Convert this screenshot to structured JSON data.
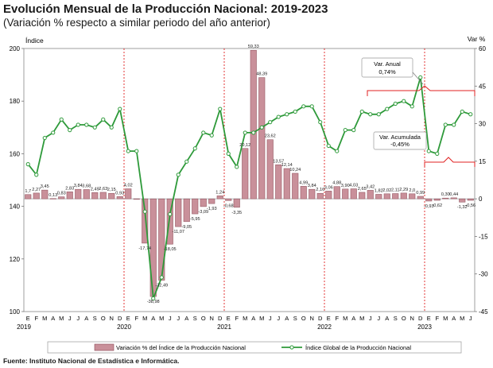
{
  "title": "Evolución Mensual de la Producción Nacional: 2019-2023",
  "subtitle": "(Variación % respecto a similar periodo del año anterior)",
  "source": "Fuente: Instituto Nacional de Estadística e Informática.",
  "chart_data": {
    "type": "bar",
    "ylabel": "Índice",
    "y2label": "Var %",
    "ylim": [
      100,
      200
    ],
    "y2lim": [
      -45,
      60
    ],
    "yticks": [
      "100",
      "120",
      "140",
      "160",
      "180",
      "200"
    ],
    "y2ticks": [
      "-45",
      "-30",
      "-15",
      "0",
      "15",
      "30",
      "45",
      "60"
    ],
    "month_labels": [
      "E",
      "F",
      "M",
      "A",
      "M",
      "J",
      "J",
      "A",
      "S",
      "O",
      "N",
      "D"
    ],
    "years": [
      "2019",
      "2020",
      "2021",
      "2022",
      "2023"
    ],
    "grid": false,
    "legend_position": "bottom",
    "colors": {
      "bar": "#c9909a",
      "bar_stroke": "#8a4a55",
      "line": "#2e9a3a",
      "marker_fill": "#ffffff",
      "divider": "#e02020",
      "annotation": "#e02020"
    },
    "series": [
      {
        "name": "Variación % del Índice de la Producción Nacional",
        "kind": "bar",
        "axis": "right",
        "values": [
          1.7,
          2.3,
          3.5,
          0.1,
          0.8,
          2.8,
          3.8,
          3.7,
          2.5,
          2.6,
          2.2,
          0.9,
          4.0,
          0.0,
          -17.7,
          -39.0,
          -32.5,
          -18.1,
          -11.1,
          -9.1,
          -6.0,
          -3.1,
          -1.9,
          1.2,
          -0.7,
          -3.4,
          20.1,
          59.3,
          48.4,
          23.6,
          13.6,
          12.1,
          10.2,
          5.0,
          3.8,
          2.2,
          3.1,
          4.9,
          3.9,
          4.0,
          2.6,
          3.4,
          1.8,
          2.0,
          2.1,
          2.3,
          2.0,
          1.0,
          -0.9,
          -0.6,
          0.3,
          0.4,
          -1.3,
          -0.6
        ],
        "data_labels": [
          "1,7",
          "2,27",
          "3,45",
          "0,13",
          "0,83",
          "2,83",
          "3,84",
          "3,68",
          "2,49",
          "2,63",
          "2,15",
          "0,93",
          "4,02",
          "",
          "-17,74",
          "-38,98",
          "-32,49",
          "-18,05",
          "-11,07",
          "-9,05",
          "-5,95",
          "-3,09",
          "-1,93",
          "1,24",
          "-0,68",
          "-3,35",
          "20,12",
          "59,33",
          "48,39",
          "23,62",
          "13,57",
          "12,14",
          "10,24",
          "4,99",
          "3,84",
          "2,16",
          "3,06",
          "4,88",
          "3,90",
          "4,03",
          "2,65",
          "3,42",
          "1,82",
          "2,02",
          "2,11",
          "2,29",
          "2,0",
          "0,99",
          "-0,93",
          "-0,62",
          "0,30",
          "0,44",
          "-1,32",
          "-0,56"
        ]
      },
      {
        "name": "Índice Global de la Producción Nacional",
        "kind": "line",
        "axis": "left",
        "values": [
          156,
          152,
          166,
          168,
          173,
          169,
          171,
          171,
          170,
          173,
          170,
          177,
          161,
          161,
          138,
          105,
          113,
          137,
          152,
          157,
          162,
          168,
          167,
          177,
          160,
          155,
          168,
          168,
          170,
          172,
          174,
          175,
          176,
          178,
          178,
          172,
          163,
          161,
          169,
          169,
          176,
          175,
          175,
          177,
          179,
          180,
          178,
          189,
          161,
          160,
          171,
          171,
          176,
          175
        ]
      }
    ],
    "annotations": [
      {
        "text": [
          "Var. Anual",
          "0,74%"
        ]
      },
      {
        "text": [
          "Var. Acumulada",
          "-0,45%"
        ]
      }
    ]
  }
}
